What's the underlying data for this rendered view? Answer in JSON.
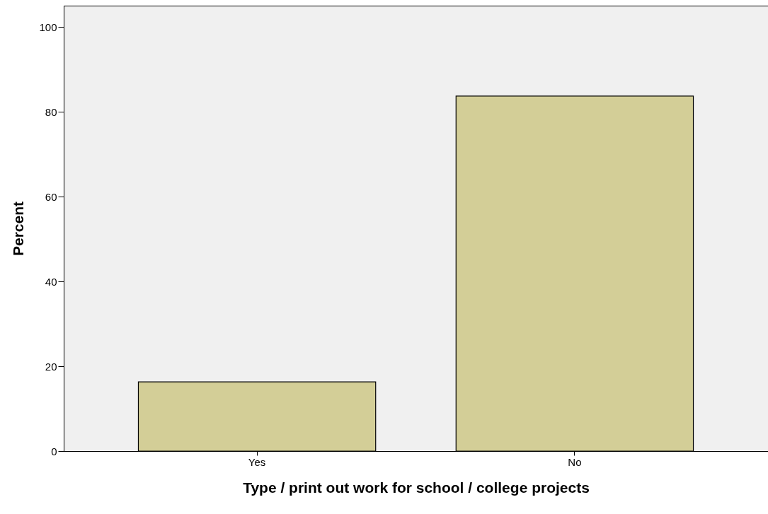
{
  "chart_data": {
    "type": "bar",
    "xlabel": "Type / print out work for school / college projects",
    "ylabel": "Percent",
    "categories": [
      "Yes",
      "No"
    ],
    "values": [
      16.3,
      83.7
    ],
    "color": "#d3ce97",
    "ylim": [
      0,
      105
    ],
    "yticks": [
      0,
      20,
      40,
      60,
      80,
      100
    ],
    "grid": false
  }
}
